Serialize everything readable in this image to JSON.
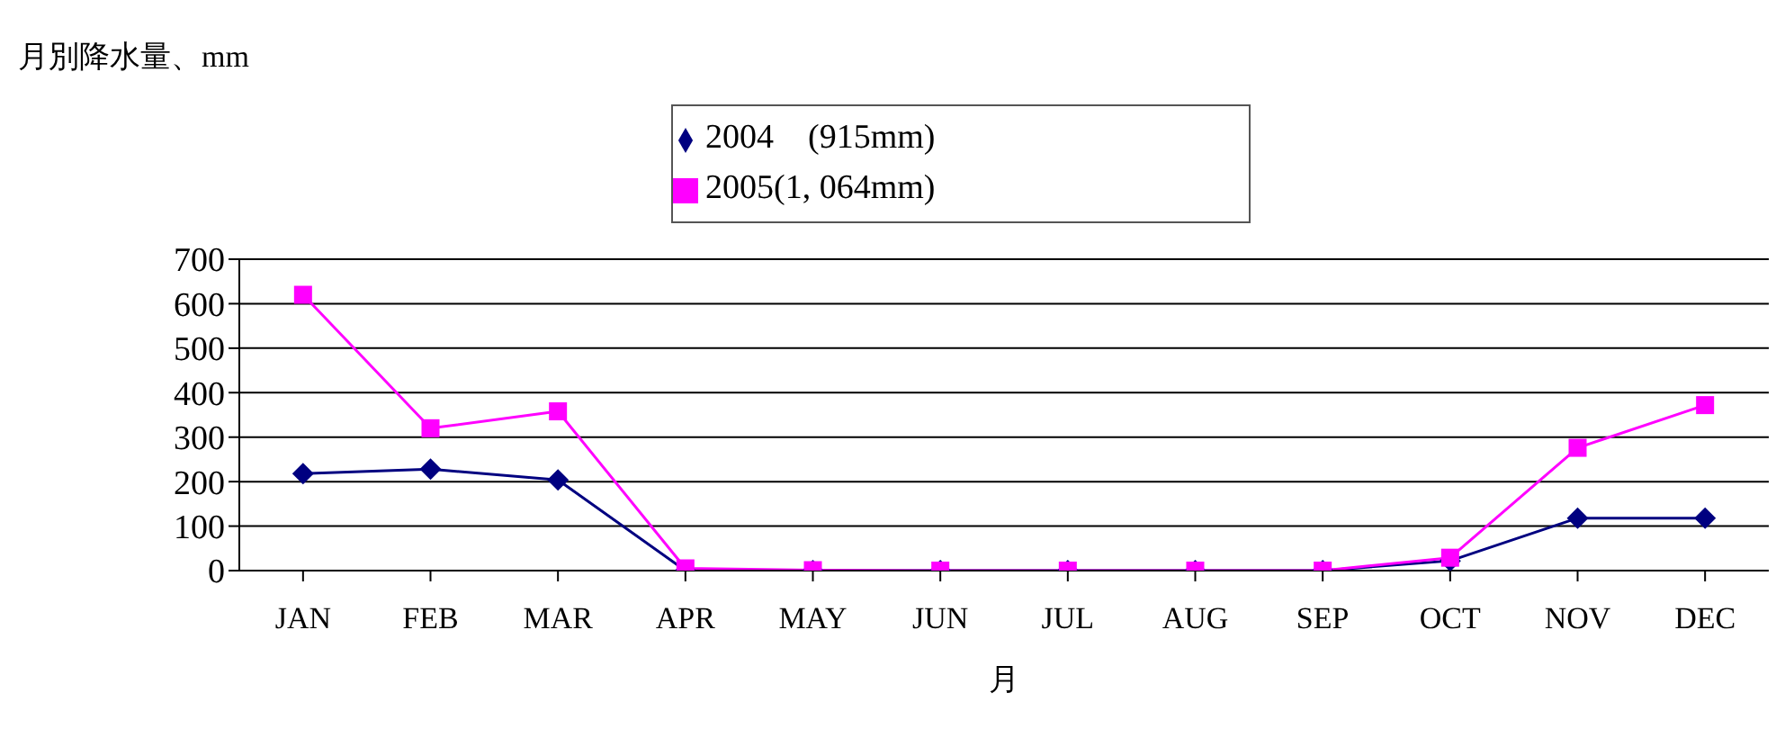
{
  "chart_data": {
    "type": "line",
    "title": "月別降水量、mm",
    "xlabel": "月",
    "categories": [
      "JAN",
      "FEB",
      "MAR",
      "APR",
      "MAY",
      "JUN",
      "JUL",
      "AUG",
      "SEP",
      "OCT",
      "NOV",
      "DEC"
    ],
    "series": [
      {
        "name": "2005(1, 064mm)",
        "color": "#ff00ff",
        "marker": "square",
        "values": [
          620,
          320,
          358,
          5,
          1,
          0,
          0,
          0,
          0,
          29,
          276,
          372
        ]
      },
      {
        "name": "2004　(915mm)",
        "color": "#000080",
        "marker": "diamond",
        "values": [
          218,
          228,
          204,
          0,
          0,
          0,
          0,
          0,
          0,
          22,
          118,
          118
        ]
      }
    ],
    "ylim": [
      0,
      700
    ],
    "yticks": [
      0,
      100,
      200,
      300,
      400,
      500,
      600,
      700
    ],
    "grid": "y",
    "legend": "top"
  }
}
